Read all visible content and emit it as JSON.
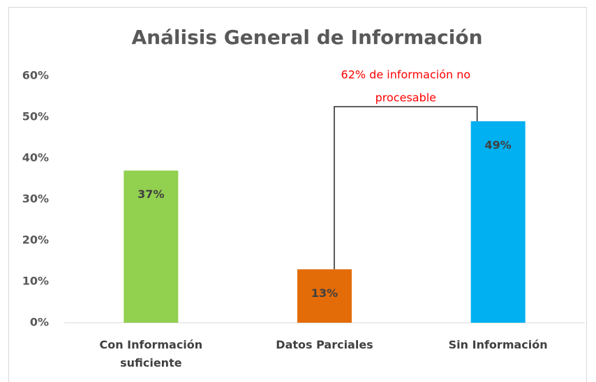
{
  "chart_data": {
    "type": "bar",
    "title": "Análisis General de Información",
    "categories": [
      "Con Información suficiente",
      "Datos Parciales",
      "Sin Información"
    ],
    "values": [
      37,
      13,
      49
    ],
    "value_labels": [
      "37%",
      "13%",
      "49%"
    ],
    "colors": [
      "#92d050",
      "#e36c09",
      "#00b0f0"
    ],
    "ylim": [
      0,
      60
    ],
    "yticks": [
      {
        "value": 0,
        "label": "0%"
      },
      {
        "value": 10,
        "label": "10%"
      },
      {
        "value": 20,
        "label": "20%"
      },
      {
        "value": 30,
        "label": "30%"
      },
      {
        "value": 40,
        "label": "40%"
      },
      {
        "value": 50,
        "label": "50%"
      },
      {
        "value": 60,
        "label": "60%"
      }
    ],
    "grid": false,
    "annotation": [
      "62% de información no",
      "procesable"
    ]
  }
}
